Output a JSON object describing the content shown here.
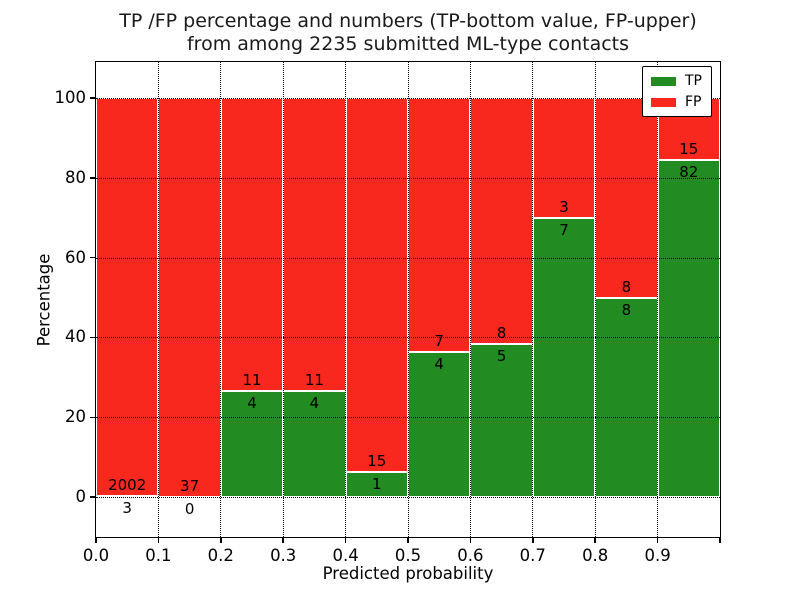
{
  "title": {
    "line1": "TP /FP percentage and numbers (TP-bottom value, FP-upper)",
    "line2": "from among 2235 submitted ML-type contacts"
  },
  "chart_data": {
    "type": "bar",
    "stacked": true,
    "normalized": "each bar totals 100%",
    "title": "TP /FP percentage and numbers (TP-bottom value, FP-upper) from among 2235 submitted ML-type contacts",
    "xlabel": "Predicted probability",
    "ylabel": "Percentage",
    "total_contacts": 2235,
    "categories": [
      "0.0-0.1",
      "0.1-0.2",
      "0.2-0.3",
      "0.3-0.4",
      "0.4-0.5",
      "0.5-0.6",
      "0.6-0.7",
      "0.7-0.8",
      "0.8-0.9",
      "0.9-1.0"
    ],
    "series": [
      {
        "name": "TP",
        "color": "#228b22",
        "values": [
          3,
          0,
          4,
          4,
          1,
          4,
          5,
          7,
          8,
          82
        ]
      },
      {
        "name": "FP",
        "color": "#f8281e",
        "values": [
          2002,
          37,
          11,
          11,
          15,
          7,
          8,
          3,
          8,
          15
        ]
      }
    ],
    "tp_percent": [
      0.15,
      0.0,
      26.67,
      26.67,
      6.25,
      36.36,
      38.46,
      70.0,
      50.0,
      84.54
    ],
    "xlim": [
      0.0,
      1.0
    ],
    "ylim": [
      -10,
      109
    ],
    "xtick_labels": [
      "0.0",
      "0.1",
      "0.2",
      "0.3",
      "0.4",
      "0.5",
      "0.6",
      "0.7",
      "0.8",
      "0.9"
    ],
    "ytick_values": [
      0,
      20,
      40,
      60,
      80,
      100
    ],
    "grid": "dotted black, drawn above bars",
    "bar_edge_color": "#ffffff",
    "legend": {
      "position": "upper-right",
      "entries": [
        {
          "label": "TP",
          "color": "#228b22"
        },
        {
          "label": "FP",
          "color": "#f8281e"
        }
      ]
    }
  }
}
